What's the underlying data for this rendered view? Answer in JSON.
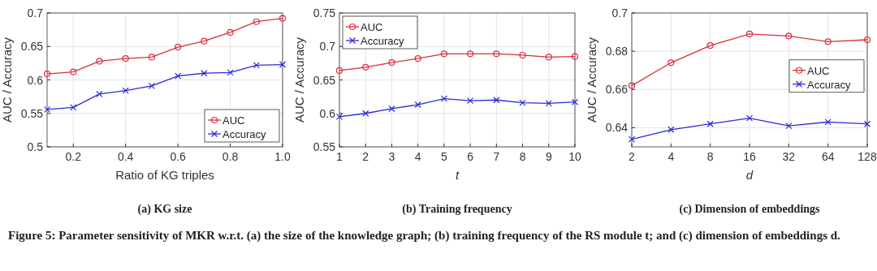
{
  "chart_data": [
    {
      "type": "line",
      "title": "(a) KG size",
      "xlabel": "Ratio of KG triples",
      "ylabel": "AUC / Accuracy",
      "x": [
        0.1,
        0.2,
        0.3,
        0.4,
        0.5,
        0.6,
        0.7,
        0.8,
        0.9,
        1.0
      ],
      "series": [
        {
          "name": "AUC",
          "color": "#d9303a",
          "marker": "circle",
          "values": [
            0.609,
            0.612,
            0.628,
            0.632,
            0.634,
            0.649,
            0.658,
            0.671,
            0.687,
            0.692
          ]
        },
        {
          "name": "Accuracy",
          "color": "#2b2bd6",
          "marker": "cross",
          "values": [
            0.556,
            0.559,
            0.579,
            0.584,
            0.591,
            0.606,
            0.61,
            0.611,
            0.622,
            0.623
          ]
        }
      ],
      "xlim": [
        0.1,
        1.0
      ],
      "xticks": [
        0.2,
        0.4,
        0.6,
        0.8,
        {
          "value": 1.0,
          "label": "1.0"
        }
      ],
      "ylim": [
        0.5,
        0.7
      ],
      "yticks": [
        0.5,
        0.55,
        0.6,
        0.65,
        0.7
      ],
      "grid": true,
      "legend": "bottom right",
      "annotations": [
        "Figure 5: Parameter sensitivity of MKR w.r.t. (a) the size of the knowledge graph; (b) training frequency of the RS module t; and (c) dimension of embeddings d."
      ]
    },
    {
      "type": "line",
      "title": "(b) Training frequency",
      "xlabel": "t",
      "ylabel": "AUC / Accuracy",
      "x": [
        1,
        2,
        3,
        4,
        5,
        6,
        7,
        8,
        9,
        10
      ],
      "series": [
        {
          "name": "AUC",
          "color": "#d9303a",
          "marker": "circle",
          "values": [
            0.664,
            0.669,
            0.676,
            0.682,
            0.689,
            0.689,
            0.689,
            0.687,
            0.684,
            0.685
          ]
        },
        {
          "name": "Accuracy",
          "color": "#2b2bd6",
          "marker": "cross",
          "values": [
            0.595,
            0.6,
            0.607,
            0.613,
            0.622,
            0.619,
            0.62,
            0.616,
            0.615,
            0.617
          ]
        }
      ],
      "xlim": [
        1,
        10
      ],
      "xticks": [
        1,
        2,
        3,
        4,
        5,
        6,
        7,
        8,
        9,
        10
      ],
      "ylim": [
        0.55,
        0.75
      ],
      "yticks": [
        0.55,
        0.6,
        0.65,
        0.7,
        0.75
      ],
      "grid": true,
      "legend": "top left"
    },
    {
      "type": "line",
      "title": "(c) Dimension of embeddings",
      "xlabel": "d",
      "ylabel": "AUC / Accuracy",
      "categories": [
        "2",
        "4",
        "8",
        "16",
        "32",
        "64",
        "128"
      ],
      "series": [
        {
          "name": "AUC",
          "color": "#d9303a",
          "marker": "circle",
          "values": [
            0.662,
            0.674,
            0.683,
            0.689,
            0.688,
            0.685,
            0.686
          ]
        },
        {
          "name": "Accuracy",
          "color": "#2b2bd6",
          "marker": "cross",
          "values": [
            0.634,
            0.639,
            0.642,
            0.645,
            0.641,
            0.643,
            0.642
          ]
        }
      ],
      "ylim": [
        0.63,
        0.7
      ],
      "yticks": [
        0.64,
        0.66,
        0.68,
        0.7
      ],
      "grid": true,
      "legend": "right"
    }
  ]
}
